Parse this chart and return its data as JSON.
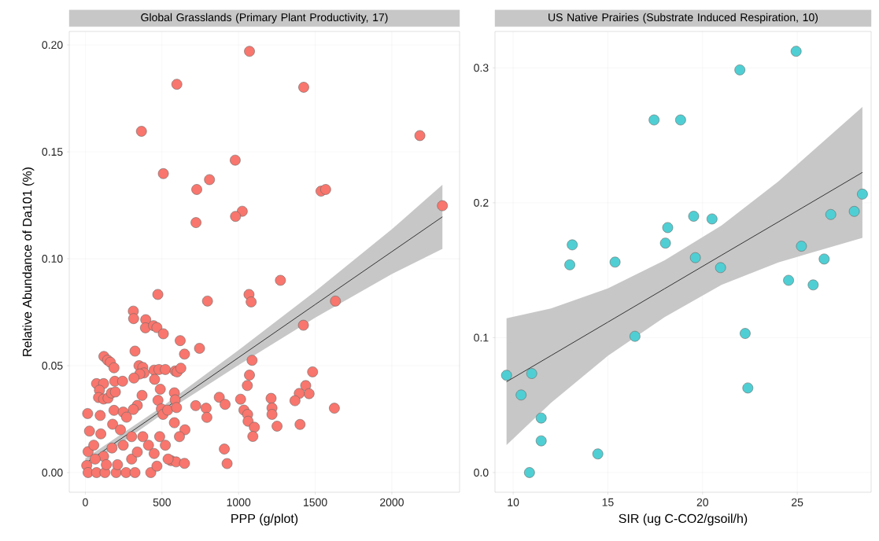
{
  "chart_data": [
    {
      "type": "scatter",
      "title": "Global Grasslands (Primary Plant Productivity, 17)",
      "xlabel": "PPP (g/plot)",
      "ylabel": "Relative Abundance of Da101 (%)",
      "xlim": [
        -105,
        2442
      ],
      "ylim": [
        -0.0092,
        0.2063
      ],
      "xticks": [
        0,
        500,
        1000,
        1500,
        2000
      ],
      "yticks": [
        {
          "value": 0,
          "label": "0.00"
        },
        {
          "value": 0.05,
          "label": "0.05"
        },
        {
          "value": 0.1,
          "label": "0.10"
        },
        {
          "value": 0.15,
          "label": "0.15"
        },
        {
          "value": 0.2,
          "label": "0.20"
        }
      ],
      "grid": true,
      "series": [
        {
          "marker": "circle",
          "color": "#f8766d",
          "x": [
            1071,
            597,
            1425,
            366,
            2183,
            978,
            509,
            810,
            727,
            1538,
            1568,
            2330,
            1024,
            980,
            722,
            1273,
            473,
            1068,
            1082,
            797,
            1632,
            313,
            315,
            394,
            392,
            445,
            467,
            509,
            1423,
            619,
            745,
            324,
            647,
            1088,
            121,
            145,
            163,
            187,
            350,
            375,
            383,
            355,
            449,
            480,
            522,
            586,
            599,
            623,
            1483,
            1071,
            1057,
            1438,
            1460,
            1396,
            1368,
            1212,
            1218,
            1218,
            1251,
            1401,
            1625,
            1013,
            1035,
            1059,
            1062,
            1103,
            1093,
            874,
            912,
            720,
            788,
            793,
            907,
            925,
            73,
            119,
            92,
            192,
            243,
            86,
            119,
            148,
            170,
            196,
            317,
            452,
            489,
            370,
            474,
            581,
            586,
            339,
            313,
            15,
            97,
            187,
            247,
            269,
            496,
            507,
            537,
            595,
            581,
            650,
            614,
            559,
            592,
            647,
            540,
            18,
            9,
            18,
            73,
            128,
            201,
            266,
            324,
            427,
            27,
            55,
            101,
            119,
            174,
            178,
            229,
            247,
            302,
            302,
            339,
            375,
            412,
            449,
            467,
            485,
            522,
            210,
            137,
            64
          ],
          "values": [
            0.197,
            0.1816,
            0.1802,
            0.1596,
            0.1576,
            0.1461,
            0.1398,
            0.137,
            0.1324,
            0.1316,
            0.1324,
            0.1248,
            0.1222,
            0.1198,
            0.1169,
            0.0899,
            0.0833,
            0.0833,
            0.0798,
            0.0802,
            0.0802,
            0.0755,
            0.072,
            0.0715,
            0.0677,
            0.0687,
            0.0678,
            0.0649,
            0.0689,
            0.0617,
            0.0581,
            0.0568,
            0.0554,
            0.0525,
            0.0543,
            0.0526,
            0.0516,
            0.049,
            0.05,
            0.0492,
            0.0466,
            0.0461,
            0.0479,
            0.0482,
            0.0482,
            0.0475,
            0.0471,
            0.0488,
            0.0471,
            0.0456,
            0.0407,
            0.0407,
            0.0369,
            0.037,
            0.0336,
            0.0347,
            0.0302,
            0.0272,
            0.0217,
            0.0225,
            0.0301,
            0.0343,
            0.0292,
            0.0272,
            0.024,
            0.0212,
            0.0169,
            0.0352,
            0.0319,
            0.0313,
            0.0301,
            0.0258,
            0.011,
            0.0042,
            0.0416,
            0.0416,
            0.0385,
            0.0427,
            0.0427,
            0.0351,
            0.0344,
            0.0348,
            0.0372,
            0.0377,
            0.0442,
            0.0436,
            0.039,
            0.0361,
            0.0338,
            0.0373,
            0.034,
            0.0314,
            0.0295,
            0.0276,
            0.0267,
            0.0291,
            0.0283,
            0.0259,
            0.0298,
            0.0272,
            0.0292,
            0.0304,
            0.0233,
            0.02,
            0.0168,
            0.0056,
            0.005,
            0.0043,
            0.0063,
            0.0098,
            0.0033,
            0,
            0,
            0,
            0,
            0,
            0,
            0,
            0.0194,
            0.0128,
            0.0181,
            0.0076,
            0.0115,
            0.0226,
            0.02,
            0.0128,
            0.0168,
            0.0063,
            0.0096,
            0.0168,
            0.0128,
            0.0089,
            0.003,
            0.0168,
            0.0128,
            0.0037,
            0.0037,
            0.0063
          ]
        },
        {
          "type": "line",
          "marker": "none",
          "color": "#333333",
          "x": [
            0,
            500,
            1000,
            1500,
            2000,
            2330
          ],
          "values": [
            0.0043,
            0.029,
            0.0538,
            0.0786,
            0.1033,
            0.1196
          ],
          "lower": [
            0.002,
            0.0272,
            0.0503,
            0.0724,
            0.0928,
            0.1046
          ],
          "upper": [
            0.0066,
            0.0308,
            0.0573,
            0.0848,
            0.1138,
            0.1346
          ]
        }
      ]
    },
    {
      "type": "scatter",
      "title": "US Native Prairies (Substrate Induced Respiration, 10)",
      "xlabel": "SIR (ug C-CO2/gsoil/h)",
      "xlim": [
        9.04,
        28.9
      ],
      "ylim": [
        -0.0146,
        0.327
      ],
      "xticks": [
        10,
        15,
        20,
        25
      ],
      "yticks": [
        {
          "value": 0,
          "label": "0.0"
        },
        {
          "value": 0.1,
          "label": "0.1"
        },
        {
          "value": 0.2,
          "label": "0.2"
        },
        {
          "value": 0.3,
          "label": "0.3"
        }
      ],
      "grid": true,
      "series": [
        {
          "marker": "circle",
          "color": "#4fcfd3",
          "x": [
            24.94,
            21.97,
            17.44,
            18.84,
            28.44,
            28.01,
            26.77,
            19.53,
            20.5,
            18.16,
            13.12,
            18.04,
            25.22,
            19.62,
            26.42,
            12.99,
            15.38,
            20.95,
            24.54,
            25.84,
            16.43,
            22.25,
            9.65,
            10.98,
            10.42,
            22.39,
            11.48,
            11.48,
            14.47,
            10.86
          ],
          "values": [
            0.3123,
            0.2985,
            0.2614,
            0.2614,
            0.2064,
            0.1936,
            0.1913,
            0.19,
            0.188,
            0.1816,
            0.1688,
            0.1701,
            0.1678,
            0.1593,
            0.1583,
            0.154,
            0.156,
            0.1519,
            0.1425,
            0.1391,
            0.101,
            0.1031,
            0.0721,
            0.0734,
            0.0575,
            0.0627,
            0.0404,
            0.0235,
            0.0138,
            0
          ]
        },
        {
          "type": "line",
          "marker": "none",
          "color": "#333333",
          "x": [
            9.65,
            12,
            15,
            18,
            21,
            24,
            28.44
          ],
          "values": [
            0.0673,
            0.0867,
            0.1115,
            0.1363,
            0.1611,
            0.1858,
            0.2225
          ],
          "lower": [
            0.0203,
            0.0517,
            0.0865,
            0.1153,
            0.1391,
            0.1558,
            0.1739
          ],
          "upper": [
            0.1143,
            0.1217,
            0.1365,
            0.1573,
            0.1831,
            0.2158,
            0.2711
          ]
        }
      ]
    }
  ]
}
